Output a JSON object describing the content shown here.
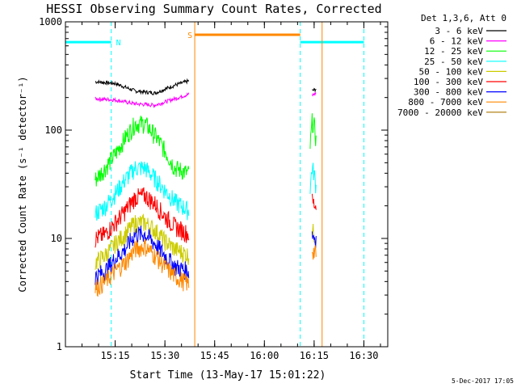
{
  "chart_data": {
    "type": "line",
    "title": "HESSI Observing Summary Count Rates, Corrected",
    "xlabel": "Start Time (13-May-17 15:01:22)",
    "ylabel": "Corrected Count Rate (s⁻¹ detector⁻¹)",
    "yscale": "log",
    "ylim": [
      1,
      1000
    ],
    "xlim_minutes": [
      15.0,
      16.62
    ],
    "x_ticks": [
      "15:15",
      "15:30",
      "15:45",
      "16:00",
      "16:15",
      "16:30"
    ],
    "y_ticks": [
      "1",
      "10",
      "100",
      "1000"
    ],
    "legend": {
      "placement": "right",
      "header": "Det 1,3,6, Att 0",
      "entries": [
        {
          "label": "3 - 6 keV",
          "color": "#000000"
        },
        {
          "label": "6 - 12 keV",
          "color": "#ff00ff"
        },
        {
          "label": "12 - 25 keV",
          "color": "#00ff00"
        },
        {
          "label": "25 - 50 keV",
          "color": "#00ffff"
        },
        {
          "label": "50 - 100 keV",
          "color": "#cccc00"
        },
        {
          "label": "100 - 300 keV",
          "color": "#ff0000"
        },
        {
          "label": "300 - 800 keV",
          "color": "#0000ff"
        },
        {
          "label": "800 - 7000 keV",
          "color": "#ff8800"
        },
        {
          "label": "7000 - 20000 keV",
          "color": "#aa7700"
        }
      ]
    },
    "annotations": [
      {
        "text": "N",
        "color": "#00ffff"
      },
      {
        "text": "S",
        "color": "#ff8800"
      }
    ],
    "series": [
      {
        "name": "3 - 6 keV",
        "color": "#000000",
        "segments": [
          {
            "x": [
              15.15,
              15.25,
              15.35,
              15.45,
              15.55,
              15.62
            ],
            "y": [
              280,
              270,
              230,
              220,
              260,
              285
            ]
          },
          {
            "x": [
              16.24,
              16.26
            ],
            "y": [
              230,
              240
            ]
          }
        ]
      },
      {
        "name": "6 - 12 keV",
        "color": "#ff00ff",
        "segments": [
          {
            "x": [
              15.15,
              15.25,
              15.35,
              15.45,
              15.55,
              15.62
            ],
            "y": [
              195,
              190,
              175,
              170,
              195,
              215
            ]
          },
          {
            "x": [
              16.24,
              16.26
            ],
            "y": [
              210,
              220
            ]
          }
        ]
      },
      {
        "name": "12 - 25 keV",
        "color": "#00ff00",
        "segments": [
          {
            "x": [
              15.15,
              15.2,
              15.25,
              15.3,
              15.35,
              15.4,
              15.45,
              15.5,
              15.55,
              15.62
            ],
            "y": [
              35,
              45,
              60,
              85,
              115,
              115,
              90,
              65,
              45,
              40
            ]
          },
          {
            "x": [
              16.23,
              16.24,
              16.25,
              16.26
            ],
            "y": [
              70,
              120,
              110,
              80
            ]
          }
        ]
      },
      {
        "name": "25 - 50 keV",
        "color": "#00ffff",
        "segments": [
          {
            "x": [
              15.15,
              15.2,
              15.25,
              15.3,
              15.35,
              15.4,
              15.45,
              15.5,
              15.55,
              15.62
            ],
            "y": [
              17,
              20,
              26,
              35,
              45,
              45,
              36,
              28,
              22,
              18
            ]
          },
          {
            "x": [
              16.23,
              16.24,
              16.25,
              16.26
            ],
            "y": [
              30,
              45,
              40,
              30
            ]
          }
        ]
      },
      {
        "name": "50 - 100 keV",
        "color": "#cccc00",
        "segments": [
          {
            "x": [
              15.15,
              15.2,
              15.25,
              15.3,
              15.35,
              15.4,
              15.45,
              15.5,
              15.55,
              15.62
            ],
            "y": [
              6,
              7,
              9,
              11,
              14,
              14,
              12,
              9.5,
              8,
              7
            ]
          },
          {
            "x": [
              16.24,
              16.26
            ],
            "y": [
              12,
              10
            ]
          }
        ]
      },
      {
        "name": "100 - 300 keV",
        "color": "#ff0000",
        "segments": [
          {
            "x": [
              15.15,
              15.2,
              15.25,
              15.3,
              15.35,
              15.4,
              15.45,
              15.5,
              15.55,
              15.62
            ],
            "y": [
              10,
              11,
              14,
              18,
              24,
              25,
              21,
              16,
              13,
              11
            ]
          },
          {
            "x": [
              16.24,
              16.26
            ],
            "y": [
              22,
              20
            ]
          }
        ]
      },
      {
        "name": "300 - 800 keV",
        "color": "#0000ff",
        "segments": [
          {
            "x": [
              15.15,
              15.2,
              15.25,
              15.3,
              15.35,
              15.4,
              15.45,
              15.5,
              15.55,
              15.62
            ],
            "y": [
              4.5,
              5,
              6.5,
              8,
              11,
              11,
              9,
              7,
              5.5,
              5
            ]
          },
          {
            "x": [
              16.24,
              16.26
            ],
            "y": [
              11,
              10
            ]
          }
        ]
      },
      {
        "name": "800 - 7000 keV",
        "color": "#ff8800",
        "segments": [
          {
            "x": [
              15.15,
              15.2,
              15.25,
              15.3,
              15.35,
              15.4,
              15.45,
              15.5,
              15.55,
              15.62
            ],
            "y": [
              3.5,
              4,
              5,
              6,
              8,
              8.5,
              7,
              5.5,
              4.5,
              3.8
            ]
          },
          {
            "x": [
              16.24,
              16.26
            ],
            "y": [
              8,
              7
            ]
          }
        ]
      }
    ],
    "flags": [
      {
        "code": "N",
        "color": "#00ffff",
        "x_start": 15.0,
        "x_end": 15.23,
        "level": 650
      },
      {
        "code": "S",
        "color": "#ff8800",
        "x_start": 15.65,
        "x_end": 16.18,
        "level": 760
      },
      {
        "code": "",
        "color": "#00ffff",
        "x_start": 16.18,
        "x_end": 16.5,
        "level": 650
      }
    ],
    "markers": [
      {
        "x": 15.0,
        "color": "#00ffff",
        "style": "dashed"
      },
      {
        "x": 15.23,
        "color": "#00ffff",
        "style": "dashed"
      },
      {
        "x": 15.65,
        "color": "#ff8800",
        "style": "solid"
      },
      {
        "x": 16.18,
        "color": "#00ffff",
        "style": "dashed"
      },
      {
        "x": 16.29,
        "color": "#ff8800",
        "style": "solid"
      },
      {
        "x": 16.5,
        "color": "#00ffff",
        "style": "dashed"
      }
    ]
  },
  "footer": {
    "timestamp": "5-Dec-2017 17:05"
  }
}
